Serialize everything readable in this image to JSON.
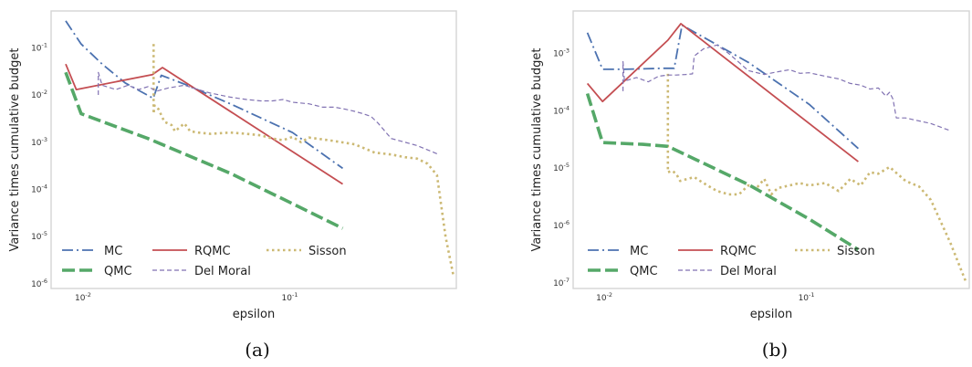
{
  "chart_data": [
    {
      "type": "line",
      "caption": "(a)",
      "xlabel": "epsilon",
      "ylabel": "Variance times cumulative budget",
      "xscale": "log",
      "yscale": "log",
      "xlim": [
        0.0068,
        0.62
      ],
      "ylim": [
        8e-07,
        0.6
      ],
      "grid": false,
      "legend_position": "lower-left",
      "x_ticks": [
        {
          "value": 0.01,
          "base": "10",
          "exp": "-2"
        },
        {
          "value": 0.1,
          "base": "10",
          "exp": "-1"
        }
      ],
      "y_ticks": [
        {
          "value": 1e-06,
          "base": "10",
          "exp": "-6"
        },
        {
          "value": 1e-05,
          "base": "10",
          "exp": "-5"
        },
        {
          "value": 0.0001,
          "base": "10",
          "exp": "-4"
        },
        {
          "value": 0.001,
          "base": "10",
          "exp": "-3"
        },
        {
          "value": 0.01,
          "base": "10",
          "exp": "-2"
        },
        {
          "value": 0.1,
          "base": "10",
          "exp": "-1"
        }
      ],
      "series": [
        {
          "name": "MC",
          "color": "#4c72b0",
          "dash": "12,4,2,4",
          "width": 1.8,
          "x": [
            0.008,
            0.0095,
            0.012,
            0.0155,
            0.0212,
            0.0232,
            0.03,
            0.05,
            0.1,
            0.175
          ],
          "y": [
            0.37,
            0.12,
            0.045,
            0.018,
            0.0085,
            0.026,
            0.017,
            0.0065,
            0.0016,
            0.00028
          ]
        },
        {
          "name": "RQMC",
          "color": "#c44e52",
          "dash": "",
          "width": 1.8,
          "x": [
            0.008,
            0.009,
            0.021,
            0.0235,
            0.175
          ],
          "y": [
            0.045,
            0.013,
            0.027,
            0.038,
            0.00013
          ]
        },
        {
          "name": "Sisson",
          "color": "#ccb974",
          "dash": "2.5,3.5",
          "width": 2.6,
          "x": [
            0.0213,
            0.0213,
            0.0215,
            0.0225,
            0.024,
            0.026,
            0.027,
            0.03,
            0.032,
            0.035,
            0.04,
            0.05,
            0.06,
            0.07,
            0.08,
            0.09,
            0.1,
            0.11,
            0.12,
            0.15,
            0.2,
            0.25,
            0.3,
            0.35,
            0.4,
            0.45,
            0.5,
            0.55,
            0.6
          ],
          "y": [
            0.12,
            0.004,
            0.006,
            0.005,
            0.0027,
            0.0023,
            0.0017,
            0.0025,
            0.0017,
            0.0016,
            0.0015,
            0.0016,
            0.0015,
            0.0014,
            0.0012,
            0.0011,
            0.0013,
            0.001,
            0.00125,
            0.0011,
            0.0009,
            0.0006,
            0.00055,
            0.00048,
            0.00045,
            0.00035,
            0.0002,
            1e-05,
            1.5e-06
          ]
        },
        {
          "name": "Del Moral",
          "color": "#8172b2",
          "dash": "5,3",
          "width": 1.2,
          "x": [
            0.0115,
            0.0115,
            0.012,
            0.014,
            0.016,
            0.018,
            0.02,
            0.022,
            0.025,
            0.03,
            0.035,
            0.04,
            0.05,
            0.06,
            0.07,
            0.08,
            0.09,
            0.1,
            0.12,
            0.14,
            0.16,
            0.18,
            0.2,
            0.22,
            0.24,
            0.26,
            0.3,
            0.4,
            0.5
          ],
          "y": [
            0.01,
            0.03,
            0.016,
            0.013,
            0.016,
            0.013,
            0.015,
            0.012,
            0.014,
            0.016,
            0.013,
            0.011,
            0.009,
            0.008,
            0.0075,
            0.0075,
            0.008,
            0.007,
            0.0065,
            0.0055,
            0.0055,
            0.005,
            0.0045,
            0.004,
            0.0035,
            0.0025,
            0.0012,
            0.00085,
            0.00057
          ]
        },
        {
          "name": "QMC",
          "color": "#55a868",
          "dash": "14,5",
          "width": 3.6,
          "x": [
            0.008,
            0.0095,
            0.02,
            0.05,
            0.1,
            0.175
          ],
          "y": [
            0.03,
            0.004,
            0.0012,
            0.00022,
            5e-05,
            1.5e-05
          ]
        }
      ],
      "legend": [
        {
          "name": "MC",
          "col": 0,
          "row": 0
        },
        {
          "name": "RQMC",
          "col": 1,
          "row": 0
        },
        {
          "name": "Sisson",
          "col": 2,
          "row": 0
        },
        {
          "name": "QMC",
          "col": 0,
          "row": 1
        },
        {
          "name": "Del Moral",
          "col": 1,
          "row": 1
        }
      ]
    },
    {
      "type": "line",
      "caption": "(b)",
      "xlabel": "epsilon",
      "ylabel": "Variance times cumulative budget",
      "xscale": "log",
      "yscale": "log",
      "xlim": [
        0.0068,
        0.62
      ],
      "ylim": [
        8e-08,
        0.0055
      ],
      "grid": false,
      "legend_position": "lower-left",
      "x_ticks": [
        {
          "value": 0.01,
          "base": "10",
          "exp": "-2"
        },
        {
          "value": 0.1,
          "base": "10",
          "exp": "-1"
        }
      ],
      "y_ticks": [
        {
          "value": 1e-07,
          "base": "10",
          "exp": "-7"
        },
        {
          "value": 1e-06,
          "base": "10",
          "exp": "-6"
        },
        {
          "value": 1e-05,
          "base": "10",
          "exp": "-5"
        },
        {
          "value": 0.0001,
          "base": "10",
          "exp": "-4"
        },
        {
          "value": 0.001,
          "base": "10",
          "exp": "-3"
        }
      ],
      "series": [
        {
          "name": "MC",
          "color": "#4c72b0",
          "dash": "12,4,2,4",
          "width": 1.8,
          "x": [
            0.008,
            0.0095,
            0.012,
            0.019,
            0.0215,
            0.0235,
            0.05,
            0.1,
            0.175
          ],
          "y": [
            0.0023,
            0.00053,
            0.00053,
            0.00055,
            0.00055,
            0.0031,
            0.0007,
            0.00013,
            2.2e-05
          ]
        },
        {
          "name": "RQMC",
          "color": "#c44e52",
          "dash": "",
          "width": 1.8,
          "x": [
            0.008,
            0.0095,
            0.02,
            0.0232,
            0.175
          ],
          "y": [
            0.0003,
            0.000145,
            0.0017,
            0.0033,
            1.3e-05
          ]
        },
        {
          "name": "Sisson",
          "color": "#ccb974",
          "dash": "2.5,3.5",
          "width": 2.6,
          "x": [
            0.02,
            0.02,
            0.021,
            0.022,
            0.023,
            0.025,
            0.027,
            0.03,
            0.035,
            0.04,
            0.045,
            0.05,
            0.055,
            0.06,
            0.065,
            0.07,
            0.08,
            0.09,
            0.1,
            0.12,
            0.14,
            0.16,
            0.18,
            0.2,
            0.22,
            0.25,
            0.3,
            0.35,
            0.4,
            0.5,
            0.6
          ],
          "y": [
            0.00044,
            8.5e-06,
            9e-06,
            8e-06,
            6e-06,
            6.5e-06,
            7e-06,
            5.5e-06,
            4e-06,
            3.5e-06,
            3.5e-06,
            5e-06,
            4.5e-06,
            6.5e-06,
            3.5e-06,
            4.5e-06,
            5e-06,
            5.5e-06,
            5e-06,
            5.5e-06,
            4e-06,
            6.5e-06,
            5e-06,
            8.5e-06,
            8e-06,
            1.05e-05,
            6e-06,
            4.8e-06,
            2.8e-06,
            5e-07,
            1e-07
          ]
        },
        {
          "name": "Del Moral",
          "color": "#8172b2",
          "dash": "5,3",
          "width": 1.2,
          "x": [
            0.012,
            0.012,
            0.0122,
            0.014,
            0.016,
            0.018,
            0.02,
            0.022,
            0.0245,
            0.0265,
            0.027,
            0.03,
            0.035,
            0.04,
            0.045,
            0.05,
            0.06,
            0.07,
            0.08,
            0.09,
            0.1,
            0.12,
            0.14,
            0.16,
            0.18,
            0.2,
            0.22,
            0.24,
            0.25,
            0.26,
            0.27,
            0.3,
            0.4,
            0.5
          ],
          "y": [
            0.00022,
            0.00072,
            0.00033,
            0.00038,
            0.00032,
            0.0004,
            0.00042,
            0.00042,
            0.00043,
            0.00044,
            0.0009,
            0.0012,
            0.0014,
            0.001,
            0.0007,
            0.0005,
            0.00043,
            0.00048,
            0.00052,
            0.00045,
            0.00046,
            0.0004,
            0.00036,
            0.0003,
            0.00028,
            0.00024,
            0.00025,
            0.00018,
            0.00021,
            0.00016,
            7.5e-05,
            7.5e-05,
            6e-05,
            4.5e-05
          ]
        },
        {
          "name": "QMC",
          "color": "#55a868",
          "dash": "14,5",
          "width": 3.6,
          "x": [
            0.008,
            0.0095,
            0.015,
            0.02,
            0.05,
            0.1,
            0.175
          ],
          "y": [
            0.0002,
            2.8e-05,
            2.6e-05,
            2.4e-05,
            5.2e-06,
            1.3e-06,
            3.8e-07
          ]
        }
      ],
      "legend": [
        {
          "name": "MC",
          "col": 0,
          "row": 0
        },
        {
          "name": "RQMC",
          "col": 1,
          "row": 0
        },
        {
          "name": "Sisson",
          "col": 2,
          "row": 0
        },
        {
          "name": "QMC",
          "col": 0,
          "row": 1
        },
        {
          "name": "Del Moral",
          "col": 1,
          "row": 1
        }
      ]
    }
  ]
}
